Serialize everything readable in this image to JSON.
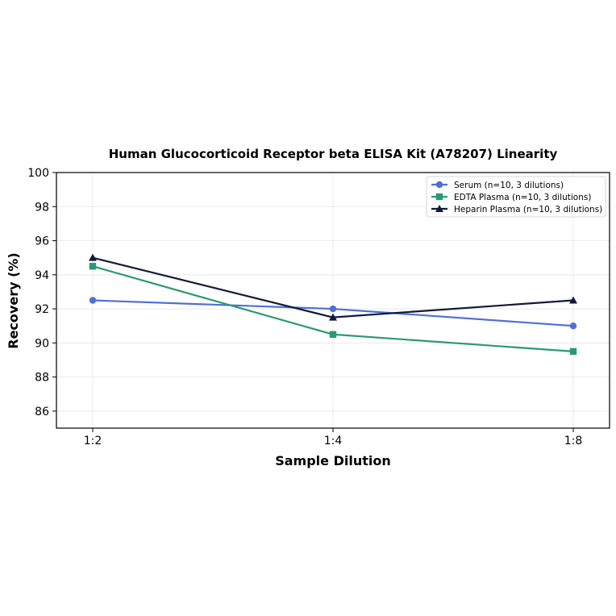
{
  "chart_data": {
    "type": "line",
    "title": "Human Glucocorticoid Receptor beta ELISA Kit (A78207) Linearity",
    "xlabel": "Sample Dilution",
    "ylabel": "Recovery (%)",
    "categories": [
      "1:2",
      "1:4",
      "1:8"
    ],
    "ylim": [
      85,
      100
    ],
    "yticks": [
      86,
      88,
      90,
      92,
      94,
      96,
      98,
      100
    ],
    "grid": true,
    "legend_position": "top-right",
    "series": [
      {
        "name": "Serum (n=10, 3 dilutions)",
        "values": [
          92.5,
          92.0,
          91.0
        ],
        "color": "#4f6fd6",
        "marker": "circle"
      },
      {
        "name": "EDTA Plasma (n=10, 3 dilutions)",
        "values": [
          94.5,
          90.5,
          89.5
        ],
        "color": "#2a9a72",
        "marker": "square"
      },
      {
        "name": "Heparin Plasma (n=10, 3 dilutions)",
        "values": [
          95.0,
          91.5,
          92.5
        ],
        "color": "#121a3a",
        "marker": "triangle"
      }
    ]
  }
}
